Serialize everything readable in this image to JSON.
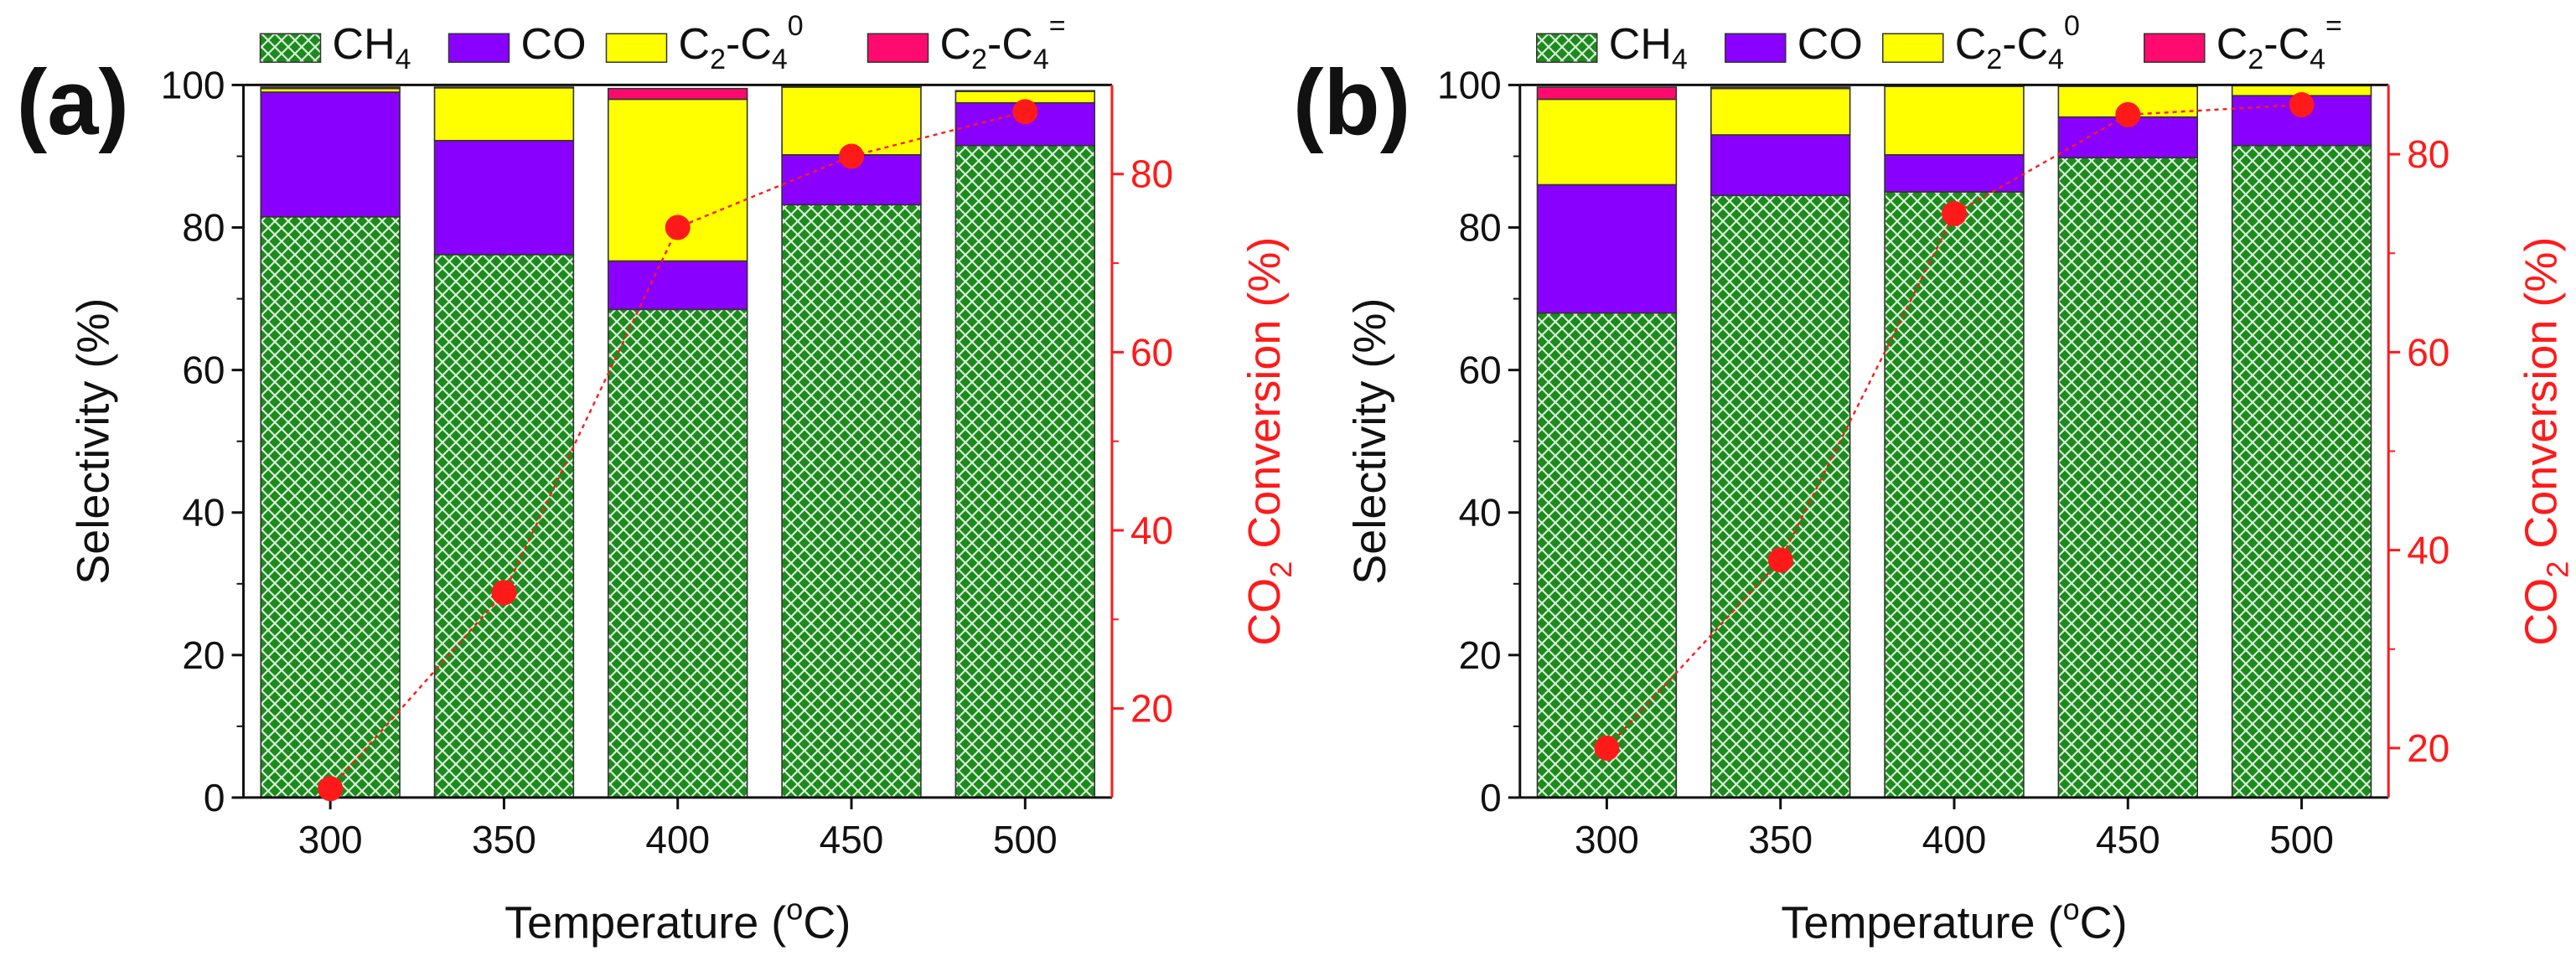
{
  "colors": {
    "ch4_fill": "#1c8a1c",
    "ch4_hatch": "#d7f0d7",
    "co": "#8a00ff",
    "c2c4_paraffin": "#ffff00",
    "c2c4_olefin": "#ff0a6e",
    "conversion": "#ff1a1a",
    "axis": "#111111"
  },
  "legend": [
    {
      "key": "ch4",
      "label": "CH",
      "sub": "4",
      "sup": ""
    },
    {
      "key": "co",
      "label": "CO",
      "sub": "",
      "sup": ""
    },
    {
      "key": "c2c4_paraffin",
      "label": "C",
      "sub": "2",
      "mid": "-C",
      "sub2": "4",
      "sup": "0"
    },
    {
      "key": "c2c4_olefin",
      "label": "C",
      "sub": "2",
      "mid": "-C",
      "sub2": "4",
      "sup": "="
    }
  ],
  "x_axis_title": {
    "pre": "Temperature (",
    "sup": "o",
    "post": "C)"
  },
  "y_axis_title": "Selectivity (%)",
  "y2_axis_title": {
    "pre": "CO",
    "sub": "2",
    "post": " Conversion (%)"
  },
  "chart_data": [
    {
      "panel_label": "(a)",
      "type": "bar",
      "stacked": true,
      "categories": [
        "300",
        "350",
        "400",
        "450",
        "500"
      ],
      "series": [
        {
          "name": "CH4",
          "key": "ch4",
          "values": [
            81.5,
            76.2,
            68.5,
            83.2,
            91.5
          ]
        },
        {
          "name": "CO",
          "key": "co",
          "values": [
            17.5,
            16.0,
            6.8,
            7.0,
            6.0
          ]
        },
        {
          "name": "C2-C4 paraffins",
          "key": "c2c4_paraffin",
          "values": [
            0.5,
            7.4,
            22.7,
            9.5,
            1.6
          ]
        },
        {
          "name": "C2-C4 olefins",
          "key": "c2c4_olefin",
          "values": [
            0.2,
            0.1,
            1.5,
            0.1,
            0.1
          ]
        }
      ],
      "ylim": [
        0,
        100
      ],
      "yticks": [
        0,
        20,
        40,
        60,
        80,
        100
      ],
      "conversion": {
        "name": "CO2 Conversion",
        "values": [
          11,
          33,
          74,
          82,
          87
        ],
        "ylim": [
          10,
          90
        ],
        "ticks": [
          20,
          40,
          60,
          80
        ]
      }
    },
    {
      "panel_label": "(b)",
      "type": "bar",
      "stacked": true,
      "categories": [
        "300",
        "350",
        "400",
        "450",
        "500"
      ],
      "series": [
        {
          "name": "CH4",
          "key": "ch4",
          "values": [
            68.0,
            84.5,
            85.0,
            89.8,
            91.5
          ]
        },
        {
          "name": "CO",
          "key": "co",
          "values": [
            18.0,
            8.5,
            5.2,
            5.7,
            7.0
          ]
        },
        {
          "name": "C2-C4 paraffins",
          "key": "c2c4_paraffin",
          "values": [
            12.0,
            6.5,
            9.6,
            4.3,
            1.4
          ]
        },
        {
          "name": "C2-C4 olefins",
          "key": "c2c4_olefin",
          "values": [
            1.7,
            0.2,
            0.2,
            0.2,
            0.1
          ]
        }
      ],
      "ylim": [
        0,
        100
      ],
      "yticks": [
        0,
        20,
        40,
        60,
        80,
        100
      ],
      "conversion": {
        "name": "CO2 Conversion",
        "values": [
          20,
          39,
          74,
          84,
          85
        ],
        "ylim": [
          15,
          87
        ],
        "ticks": [
          20,
          40,
          60,
          80
        ]
      }
    }
  ]
}
